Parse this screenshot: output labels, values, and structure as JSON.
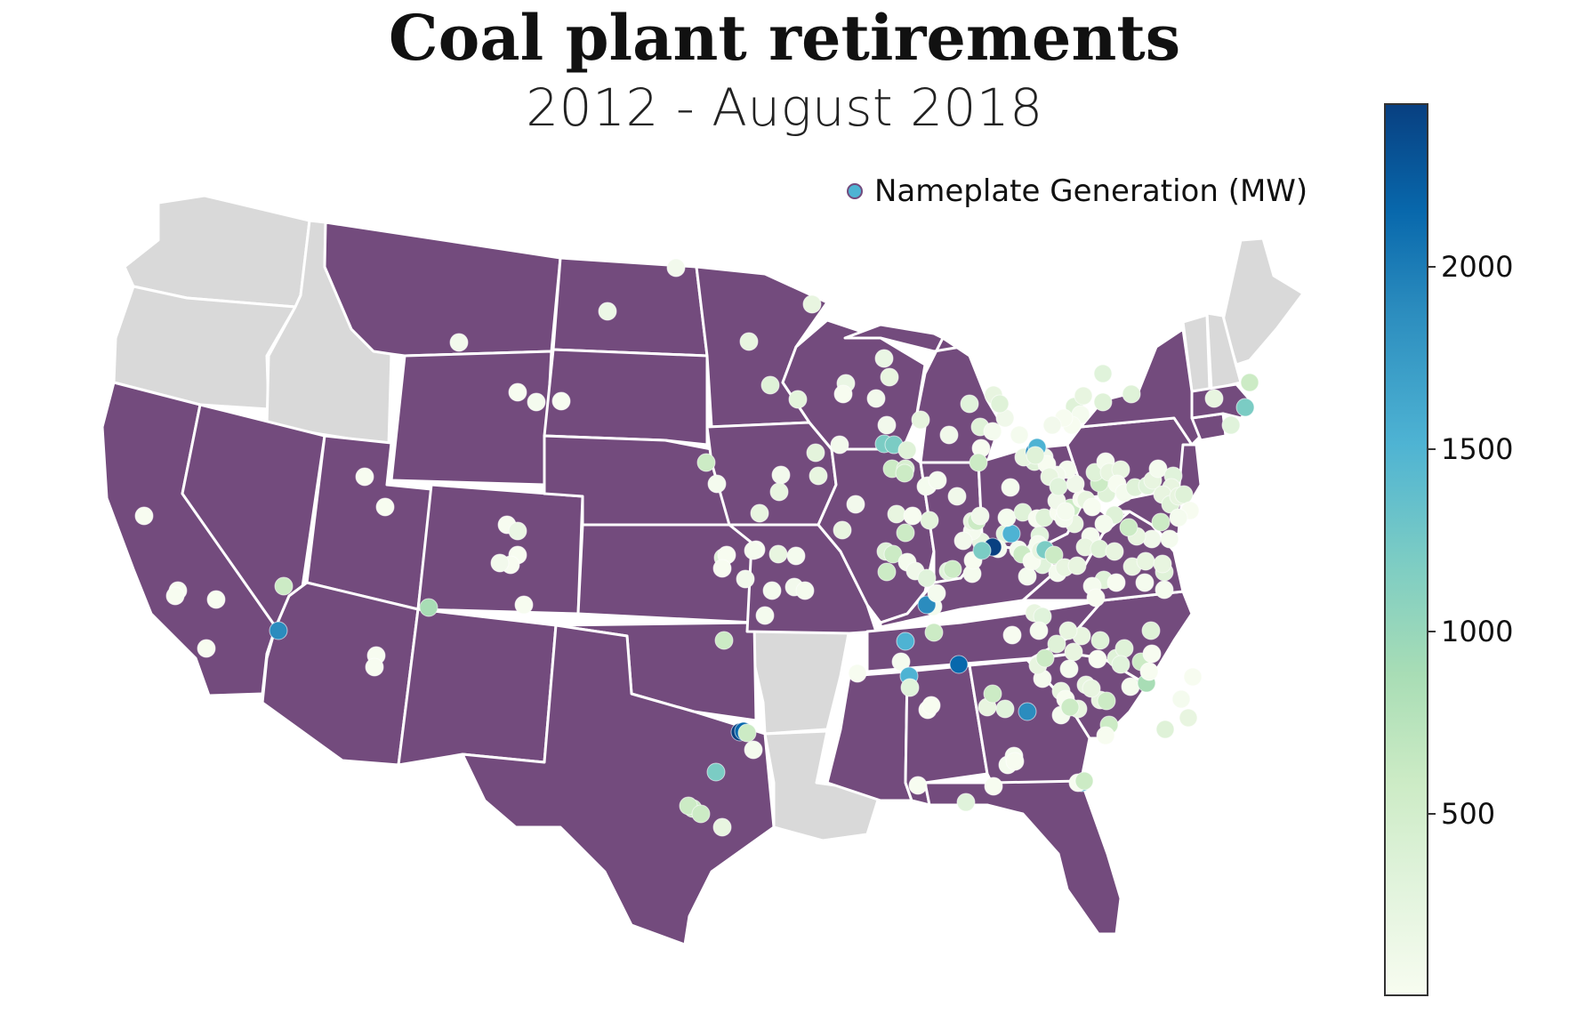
{
  "title": "Coal plant retirements",
  "subtitle": "2012 - August 2018",
  "legend": {
    "label": "Nameplate Generation (MW)"
  },
  "colorbar": {
    "min": 0,
    "max": 2450,
    "ticks": [
      {
        "value": 2000,
        "label": "2000"
      },
      {
        "value": 1500,
        "label": "1500"
      },
      {
        "value": 1000,
        "label": "1000"
      },
      {
        "value": 500,
        "label": "500"
      }
    ],
    "colors": [
      "#f7fcf0",
      "#e0f3db",
      "#ccebc5",
      "#a8ddb5",
      "#7bccc4",
      "#4eb3d3",
      "#2b8cbe",
      "#0868ac",
      "#084081"
    ]
  },
  "map_colors": {
    "affected": "#734b7d",
    "unaffected": "#d9d9d9",
    "border": "#ffffff"
  },
  "states_with_retirements": [
    "California",
    "Nevada",
    "Utah",
    "Arizona",
    "Montana",
    "Wyoming",
    "Colorado",
    "New Mexico",
    "North Dakota",
    "South Dakota",
    "Nebraska",
    "Kansas",
    "Oklahoma",
    "Texas",
    "Minnesota",
    "Iowa",
    "Missouri",
    "Wisconsin",
    "Illinois",
    "Michigan",
    "Indiana",
    "Ohio",
    "Kentucky",
    "Tennessee",
    "Mississippi",
    "Alabama",
    "Georgia",
    "Florida",
    "South Carolina",
    "North Carolina",
    "Virginia",
    "West Virginia",
    "Pennsylvania",
    "New York",
    "Maryland",
    "Delaware",
    "New Jersey",
    "Connecticut",
    "Massachusetts"
  ],
  "states_without_retirements": [
    "Washington",
    "Oregon",
    "Idaho",
    "Arkansas",
    "Louisiana",
    "Maine",
    "New Hampshire",
    "Vermont"
  ]
}
